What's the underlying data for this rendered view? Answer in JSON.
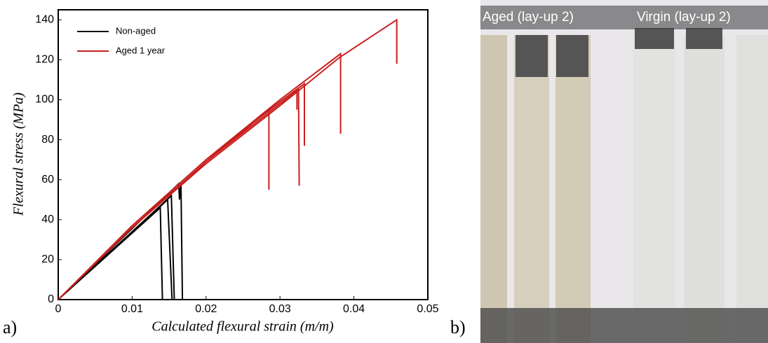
{
  "chart_data": {
    "type": "line",
    "x_label": "Calculated flexural strain (m/m)",
    "y_label": "Flexural stress (MPa)",
    "xlim": [
      0,
      0.05
    ],
    "ylim": [
      0,
      145
    ],
    "xticks": [
      0,
      0.01,
      0.02,
      0.03,
      0.04,
      0.05
    ],
    "yticks": [
      0,
      20,
      40,
      60,
      80,
      100,
      120,
      140
    ],
    "legend": "upper left",
    "series": [
      {
        "name": "Non-aged",
        "color": "#000000",
        "x": [
          0,
          0.0138,
          0.0141,
          null,
          0,
          0.0148,
          0.0154,
          null,
          0,
          0.0153,
          0.0157,
          null,
          0,
          0.0163,
          0.0164,
          0.0166,
          0.0168
        ],
        "values": [
          0,
          46,
          0,
          null,
          0,
          50,
          0,
          null,
          0,
          52,
          0,
          null,
          0,
          58,
          50,
          58,
          0
        ]
      },
      {
        "name": "Aged 1 year",
        "color": "#c8201e",
        "x": [
          0,
          0.01,
          0.02,
          0.0285,
          0.0285,
          null,
          0,
          0.01,
          0.02,
          0.03,
          0.0323,
          0.0323,
          null,
          0,
          0.01,
          0.02,
          0.03,
          0.0325,
          0.0326,
          null,
          0,
          0.01,
          0.02,
          0.03,
          0.0333,
          0.0333,
          null,
          0,
          0.01,
          0.02,
          0.03,
          0.0382,
          0.0382,
          null,
          0,
          0.01,
          0.02,
          0.03,
          0.038,
          0.0458,
          0.0458
        ],
        "values": [
          0,
          36,
          69,
          95,
          55,
          null,
          0,
          36,
          69,
          98,
          104,
          95,
          null,
          0,
          36,
          69,
          98,
          105,
          57,
          null,
          0,
          37,
          70,
          99,
          108,
          77,
          null,
          0,
          37,
          70,
          100,
          123,
          83,
          null,
          0,
          36,
          68,
          97,
          121,
          140,
          118
        ]
      }
    ]
  },
  "panel_labels": [
    "a)",
    "b)"
  ],
  "photo": {
    "labels": [
      "Aged  (lay-up 2)",
      "Virgin (lay-up 2)"
    ]
  }
}
